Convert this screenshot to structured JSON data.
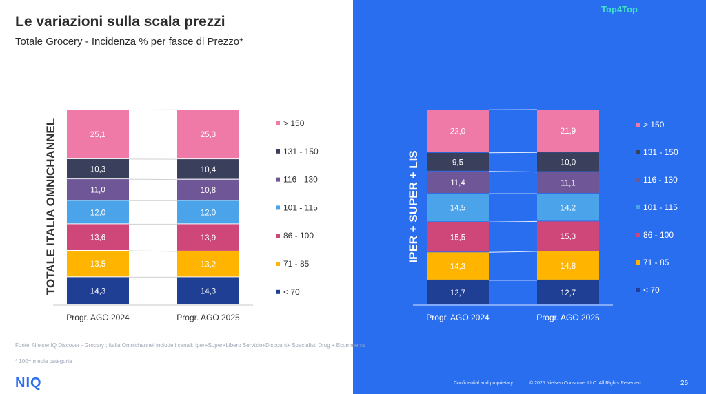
{
  "header": {
    "title": "Le variazioni sulla scala prezzi",
    "subtitle": "Totale Grocery - Incidenza % per fasce di Prezzo*",
    "badge": "Top4Top"
  },
  "legend": [
    "> 150",
    "131 - 150",
    "116 - 130",
    "101 - 115",
    "86 - 100",
    "71 - 85",
    "< 70"
  ],
  "colors": {
    "> 150": "#f07aa7",
    "131 - 150": "#3a3f5c",
    "116 - 130": "#6e5697",
    "101 - 115": "#4ba3ea",
    "86 - 100": "#cf4679",
    "71 - 85": "#ffb400",
    "< 70": "#1f3f94",
    "left_bg": "#ffffff",
    "right_bg": "#2a6ef0"
  },
  "chart_data": [
    {
      "type": "bar",
      "stacked": true,
      "title": "TOTALE ITALIA OMNICHANNEL",
      "categories": [
        "Progr. AGO 2024",
        "Progr. AGO 2025"
      ],
      "series": [
        {
          "name": "< 70",
          "values": [
            14.3,
            14.3
          ]
        },
        {
          "name": "71 - 85",
          "values": [
            13.5,
            13.2
          ]
        },
        {
          "name": "86 - 100",
          "values": [
            13.6,
            13.9
          ]
        },
        {
          "name": "101 - 115",
          "values": [
            12.0,
            12.0
          ]
        },
        {
          "name": "116 - 130",
          "values": [
            11.0,
            10.8
          ]
        },
        {
          "name": "131 - 150",
          "values": [
            10.3,
            10.4
          ]
        },
        {
          "name": "> 150",
          "values": [
            25.1,
            25.3
          ]
        }
      ],
      "labels": [
        {
          "name": "< 70",
          "values": [
            "14,3",
            "14,3"
          ]
        },
        {
          "name": "71 - 85",
          "values": [
            "13,5",
            "13,2"
          ]
        },
        {
          "name": "86 - 100",
          "values": [
            "13,6",
            "13,9"
          ]
        },
        {
          "name": "101 - 115",
          "values": [
            "12,0",
            "12,0"
          ]
        },
        {
          "name": "116 - 130",
          "values": [
            "11,0",
            "10,8"
          ]
        },
        {
          "name": "131 - 150",
          "values": [
            "10,3",
            "10,4"
          ]
        },
        {
          "name": "> 150",
          "values": [
            "25,1",
            "25,3"
          ]
        }
      ],
      "ylim": [
        0,
        100
      ],
      "legend_position": "right"
    },
    {
      "type": "bar",
      "stacked": true,
      "title": "IPER + SUPER + LIS",
      "categories": [
        "Progr. AGO 2024",
        "Progr. AGO 2025"
      ],
      "series": [
        {
          "name": "< 70",
          "values": [
            12.7,
            12.7
          ]
        },
        {
          "name": "71 - 85",
          "values": [
            14.3,
            14.8
          ]
        },
        {
          "name": "86 - 100",
          "values": [
            15.5,
            15.3
          ]
        },
        {
          "name": "101 - 115",
          "values": [
            14.5,
            14.2
          ]
        },
        {
          "name": "116 - 130",
          "values": [
            11.4,
            11.1
          ]
        },
        {
          "name": "131 - 150",
          "values": [
            9.5,
            10.0
          ]
        },
        {
          "name": "> 150",
          "values": [
            22.0,
            21.9
          ]
        }
      ],
      "labels": [
        {
          "name": "< 70",
          "values": [
            "12,7",
            "12,7"
          ]
        },
        {
          "name": "71 - 85",
          "values": [
            "14,3",
            "14,8"
          ]
        },
        {
          "name": "86 - 100",
          "values": [
            "15,5",
            "15,3"
          ]
        },
        {
          "name": "101 - 115",
          "values": [
            "14,5",
            "14,2"
          ]
        },
        {
          "name": "116 - 130",
          "values": [
            "11,4",
            "11,1"
          ]
        },
        {
          "name": "131 - 150",
          "values": [
            "9,5",
            "10,0"
          ]
        },
        {
          "name": "> 150",
          "values": [
            "22,0",
            "21,9"
          ]
        }
      ],
      "ylim": [
        0,
        100
      ],
      "legend_position": "right"
    }
  ],
  "footer": {
    "source": "Fonte: NielsenIQ Discover  - Grocery ; Italia Omnichannel include i canali: Iper+Super+Libero Servizio+Discount+ Specialisti Drug + Ecommerce",
    "note": "* 100= media categoria",
    "logo": "NIQ",
    "confidential": "Confidential and proprietary",
    "copyright": "© 2025 Nielsen Consumer LLC. All Rights Reserved.",
    "page": "26"
  }
}
